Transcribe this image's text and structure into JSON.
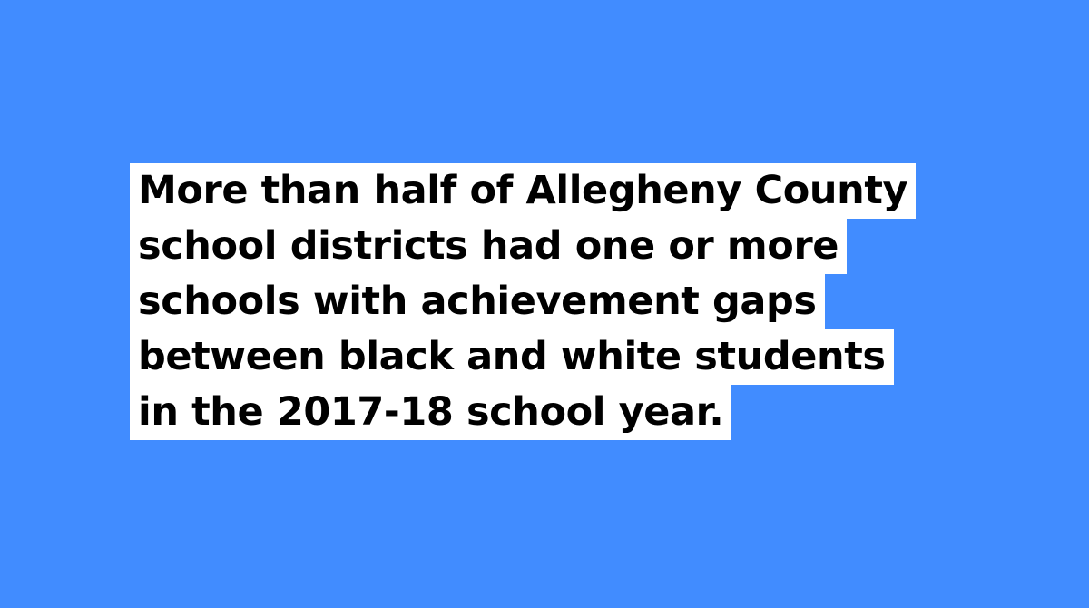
{
  "headline": {
    "lines": [
      "More than half of Allegheny County",
      "school districts had one or more",
      "schools with achievement gaps",
      "between black and white students",
      "in the 2017-18 school year."
    ]
  },
  "colors": {
    "background": "#418cff",
    "highlight": "#ffffff",
    "text": "#000000"
  }
}
